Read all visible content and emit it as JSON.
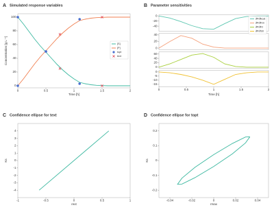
{
  "chart_data": [
    {
      "panel": "A",
      "title": "Simulated response variables",
      "type": "line",
      "xlabel": "Time [h]",
      "ylabel": "Concentration [g L⁻¹]",
      "xlim": [
        0,
        2
      ],
      "xticks": [
        0,
        0.5,
        1,
        1.5,
        2
      ],
      "ylim": [
        -3,
        105
      ],
      "yticks": [
        0,
        20,
        40,
        60,
        80,
        100
      ],
      "legend": "right",
      "series": [
        {
          "name": "[S]",
          "color": "#3cb8a0",
          "x": [
            0,
            0.1,
            0.2,
            0.3,
            0.4,
            0.5,
            0.6,
            0.7,
            0.8,
            0.9,
            1,
            1.1,
            1.2,
            1.3,
            1.4,
            1.5,
            1.6,
            1.7,
            1.8,
            1.9,
            2
          ],
          "values": [
            100,
            90,
            79,
            68,
            58,
            49,
            40,
            31,
            23,
            16,
            10,
            5,
            3,
            1.5,
            0.7,
            0.3,
            0,
            0,
            0,
            0,
            0
          ]
        },
        {
          "name": "[P]",
          "color": "#f07f50",
          "x": [
            0,
            0.1,
            0.2,
            0.3,
            0.4,
            0.5,
            0.6,
            0.7,
            0.8,
            0.9,
            1,
            1.1,
            1.2,
            1.3,
            1.4,
            1.5,
            1.6,
            1.7,
            1.8,
            1.9,
            2
          ],
          "values": [
            0,
            10,
            21,
            32,
            42,
            51,
            60,
            69,
            77,
            84,
            90,
            95,
            97,
            98.5,
            99.3,
            99.7,
            100,
            100,
            100,
            100,
            100
          ]
        },
        {
          "name": "topt",
          "color": "#4a6fd0",
          "marker": "circle",
          "x": [
            0,
            0,
            0.5,
            0.5,
            1.1,
            1.1
          ],
          "values": [
            100,
            0,
            50,
            50,
            97,
            3
          ]
        },
        {
          "name": "text",
          "color": "#e04050",
          "marker": "x",
          "x": [
            0.75,
            0.75,
            1.5,
            1.5
          ],
          "values": [
            25,
            75,
            100,
            0
          ]
        }
      ]
    },
    {
      "panel": "B",
      "title": "Parameter sensitivities",
      "type": "line",
      "xlabel": "Time [h]",
      "xlim": [
        0,
        2
      ],
      "xticks": [
        0,
        0.5,
        1,
        1.5,
        2
      ],
      "legend": "right",
      "series": [
        {
          "name": "∂P/∂kcat",
          "color": "#5cc6b0",
          "x": [
            0,
            0.2,
            0.4,
            0.6,
            0.8,
            1,
            1.2,
            1.4,
            1.6,
            1.8,
            2
          ],
          "values": [
            0,
            -8,
            -22,
            -38,
            -50,
            -52,
            -30,
            -10,
            -2,
            0,
            0
          ],
          "ylim": [
            -60,
            5
          ],
          "yticks": [
            -40,
            -20,
            0
          ]
        },
        {
          "name": "∂P/∂Km",
          "color": "#f5a07a",
          "x": [
            0,
            0.2,
            0.4,
            0.6,
            0.8,
            1,
            1.2,
            1.4,
            1.6,
            1.8,
            2
          ],
          "values": [
            0,
            20,
            38,
            30,
            12,
            3,
            0,
            0,
            0,
            0,
            0
          ],
          "ylim": [
            -5,
            45
          ],
          "yticks": [
            0,
            20,
            40
          ]
        },
        {
          "name": "∂P/∂KI",
          "color": "#a8cf3a",
          "x": [
            0,
            0.2,
            0.4,
            0.6,
            0.8,
            1,
            1.2,
            1.4,
            1.6,
            1.8,
            2
          ],
          "values": [
            0,
            15,
            35,
            55,
            62,
            45,
            15,
            3,
            0,
            0,
            0
          ],
          "ylim": [
            -5,
            70
          ],
          "yticks": [
            0,
            20,
            40,
            60
          ]
        },
        {
          "name": "∂P/∂S0",
          "color": "#f0c030",
          "x": [
            0,
            0.2,
            0.4,
            0.6,
            0.8,
            1,
            1.2,
            1.4,
            1.6,
            1.8,
            2
          ],
          "values": [
            0,
            -1,
            -3,
            -6,
            -10,
            -15,
            -9,
            -3,
            -1,
            0,
            0
          ],
          "ylim": [
            -18,
            2
          ],
          "yticks": [
            -15,
            -10,
            -5,
            0
          ]
        }
      ]
    },
    {
      "panel": "C",
      "title": "Confidence ellipse for text",
      "type": "line",
      "xlabel": "rext",
      "ylabel": "Ks",
      "xlim": [
        -1,
        1
      ],
      "xticks": [
        -1,
        -0.5,
        0,
        0.5,
        1
      ],
      "ylim": [
        -5,
        5
      ],
      "yticks": [
        -4,
        -3,
        -2,
        -1,
        0,
        1,
        2,
        3,
        4
      ],
      "series": [
        {
          "color": "#3cb8a0",
          "x": [
            -0.62,
            0.62
          ],
          "values": [
            -4,
            4
          ]
        }
      ]
    },
    {
      "panel": "D",
      "title": "Confidence ellipse for topt",
      "type": "line",
      "xlabel": "rmax",
      "ylabel": "Ks",
      "xlim": [
        -0.05,
        0.05
      ],
      "xticks": [
        -0.04,
        -0.02,
        0,
        0.02,
        0.04
      ],
      "ylim": [
        -0.25,
        0.25
      ],
      "yticks": [
        -0.2,
        -0.1,
        0,
        0.1,
        0.2
      ],
      "series": [
        {
          "color": "#3cb8a0",
          "x": [
            0.033,
            0.029,
            0.017,
            0,
            -0.017,
            -0.029,
            -0.033,
            -0.029,
            -0.017,
            0,
            0.017,
            0.029,
            0.033
          ],
          "values": [
            0.16,
            0.159,
            0.115,
            0.04,
            -0.045,
            -0.119,
            -0.16,
            -0.159,
            -0.115,
            -0.04,
            0.045,
            0.119,
            0.16
          ]
        }
      ]
    }
  ]
}
